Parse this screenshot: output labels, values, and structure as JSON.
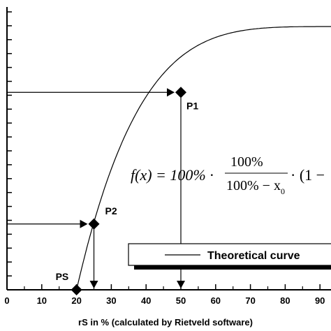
{
  "chart_data": {
    "type": "line",
    "title": "",
    "xlabel": "rS in % (calculated by Rietveld software)",
    "ylabel": "",
    "xlim": [
      0,
      100
    ],
    "x_ticks": [
      0,
      10,
      20,
      30,
      40,
      50,
      60,
      70,
      80,
      90
    ],
    "x_tick_labels": [
      "0",
      "10",
      "20",
      "30",
      "40",
      "50",
      "60",
      "70",
      "80",
      "90"
    ],
    "y_tick_count": 21,
    "curve_model": {
      "x0": 20,
      "ratio_at_25": 0.25,
      "ratio_at_50": 0.75
    },
    "points": [
      {
        "name": "PS",
        "x": 20,
        "y_fraction": 0.0
      },
      {
        "name": "P2",
        "x": 25,
        "y_fraction": 0.25
      },
      {
        "name": "P1",
        "x": 50,
        "y_fraction": 0.75
      }
    ],
    "formula": {
      "lhs": "f(x) = 100% ·",
      "numerator": "100%",
      "denominator": "100% − x",
      "subscript": "0",
      "tail": "· (1 −"
    },
    "legend": {
      "label": "Theoretical curve",
      "placement": "lower-right"
    },
    "colors": {
      "line": "#000000",
      "background": "#ffffff"
    }
  }
}
